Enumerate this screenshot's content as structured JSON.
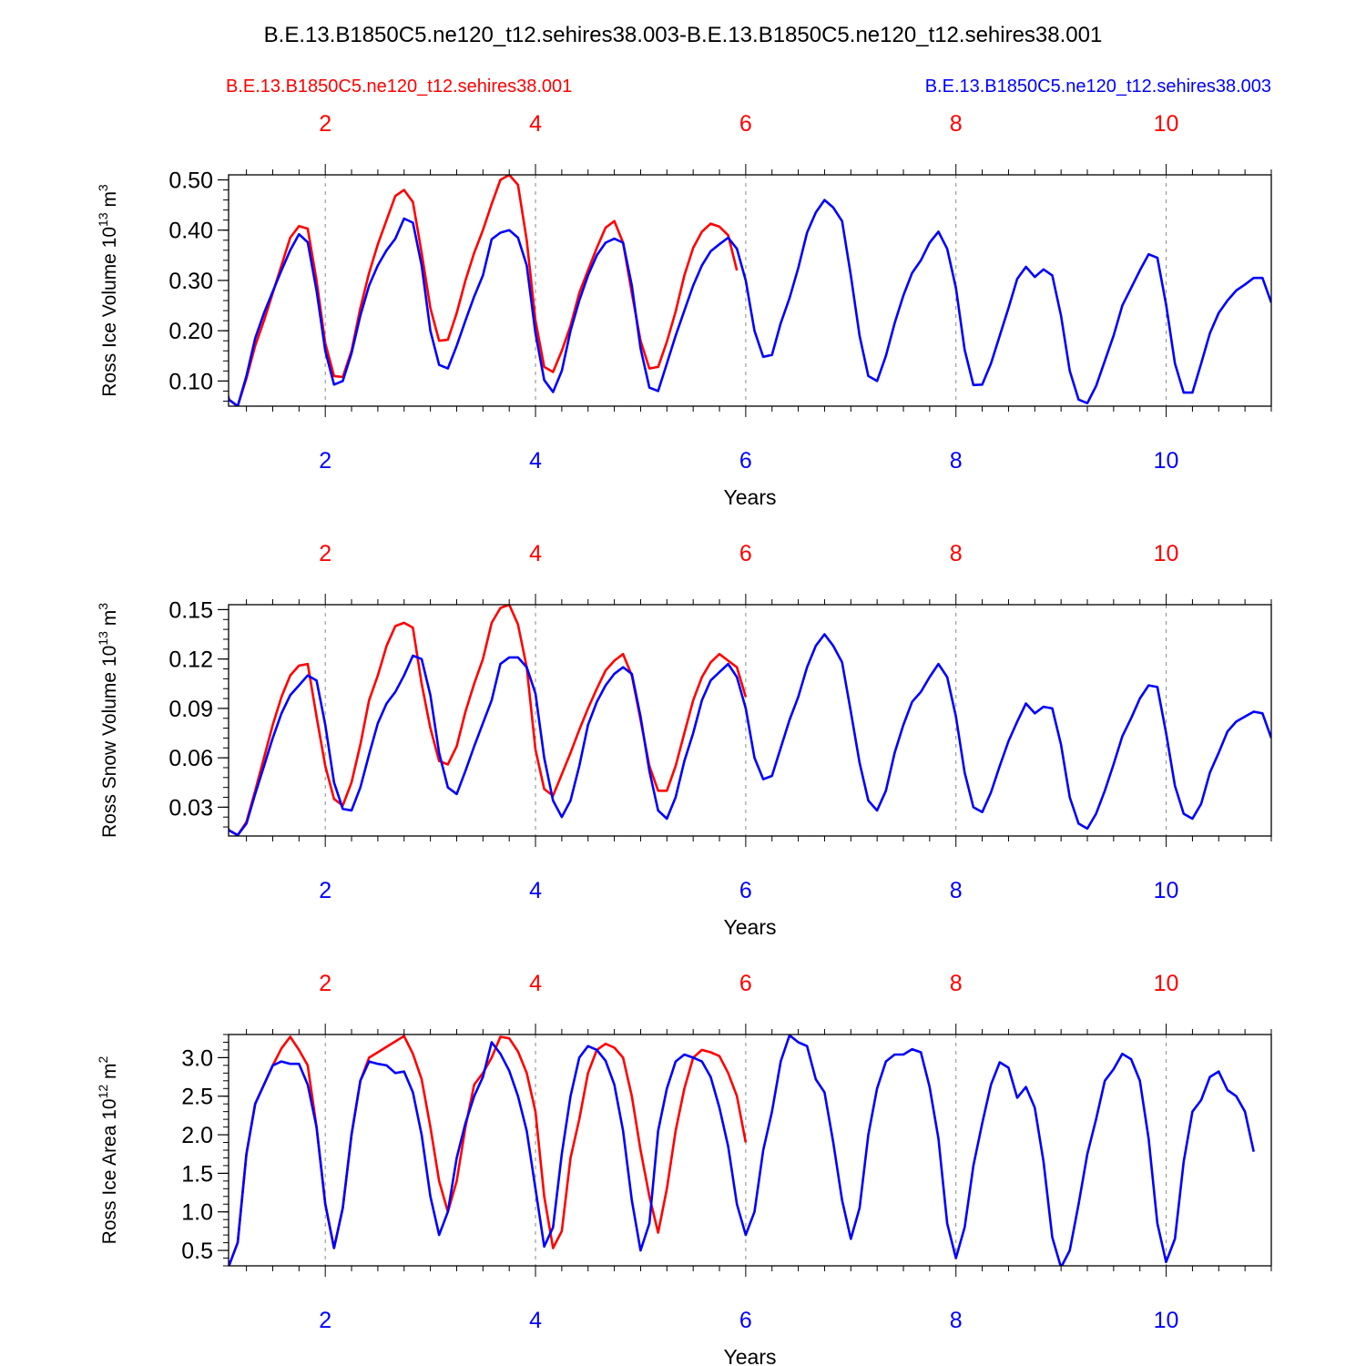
{
  "figure": {
    "title": "B.E.13.B1850C5.ne120_t12.sehires38.003-B.E.13.B1850C5.ne120_t12.sehires38.001",
    "run_labels": {
      "left": "B.E.13.B1850C5.ne120_t12.sehires38.001",
      "right": "B.E.13.B1850C5.ne120_t12.sehires38.003"
    }
  },
  "colors": {
    "run_001": "#ff0000",
    "run_003": "#0000ff",
    "axis": "#000000",
    "grid": "#888888"
  },
  "chart_data": [
    {
      "type": "line",
      "ylabel": "Ross Ice Volume 10",
      "ylabel_exp": "13",
      "ylabel_unit": " m",
      "ylabel_unit_exp": "3",
      "xlabel": "Years",
      "xlim": [
        1.08,
        11.0
      ],
      "ylim": [
        0.05,
        0.51
      ],
      "yticks": [
        0.1,
        0.2,
        0.3,
        0.4,
        0.5
      ],
      "ytick_labels": [
        "0.10",
        "0.20",
        "0.30",
        "0.40",
        "0.50"
      ],
      "xticks": [
        2,
        4,
        6,
        8,
        10
      ],
      "xtick_labels": [
        "2",
        "4",
        "6",
        "8",
        "10"
      ],
      "top_xtick_labels": [
        "2",
        "4",
        "6",
        "8",
        "10"
      ],
      "vlines": [
        2,
        4,
        6,
        8,
        10
      ],
      "series": [
        {
          "name": "B.E.13.B1850C5.ne120_t12.sehires38.001",
          "color_key": "run_001",
          "x_start": 1.0,
          "x_step": 0.08333,
          "values": [
            0.135,
            0.063,
            0.05,
            0.105,
            0.17,
            0.22,
            0.275,
            0.33,
            0.385,
            0.408,
            0.403,
            0.3,
            0.175,
            0.11,
            0.108,
            0.16,
            0.245,
            0.315,
            0.372,
            0.42,
            0.468,
            0.48,
            0.456,
            0.355,
            0.245,
            0.18,
            0.182,
            0.235,
            0.3,
            0.355,
            0.4,
            0.452,
            0.5,
            0.51,
            0.49,
            0.38,
            0.22,
            0.128,
            0.118,
            0.16,
            0.21,
            0.275,
            0.32,
            0.365,
            0.405,
            0.418,
            0.375,
            0.275,
            0.18,
            0.125,
            0.128,
            0.178,
            0.238,
            0.31,
            0.365,
            0.397,
            0.413,
            0.407,
            0.39,
            0.32
          ]
        },
        {
          "name": "B.E.13.B1850C5.ne120_t12.sehires38.003",
          "color_key": "run_003",
          "x_start": 1.0,
          "x_step": 0.08333,
          "values": [
            0.135,
            0.063,
            0.05,
            0.11,
            0.185,
            0.235,
            0.278,
            0.32,
            0.36,
            0.392,
            0.376,
            0.28,
            0.16,
            0.093,
            0.1,
            0.155,
            0.23,
            0.29,
            0.33,
            0.36,
            0.383,
            0.423,
            0.415,
            0.33,
            0.2,
            0.132,
            0.125,
            0.17,
            0.22,
            0.268,
            0.31,
            0.382,
            0.395,
            0.4,
            0.385,
            0.33,
            0.195,
            0.102,
            0.078,
            0.12,
            0.2,
            0.26,
            0.31,
            0.35,
            0.375,
            0.383,
            0.375,
            0.29,
            0.165,
            0.087,
            0.08,
            0.135,
            0.19,
            0.24,
            0.29,
            0.33,
            0.358,
            0.372,
            0.385,
            0.363,
            0.3,
            0.2,
            0.148,
            0.152,
            0.215,
            0.265,
            0.325,
            0.395,
            0.435,
            0.46,
            0.445,
            0.418,
            0.31,
            0.19,
            0.11,
            0.1,
            0.15,
            0.215,
            0.27,
            0.315,
            0.34,
            0.375,
            0.397,
            0.363,
            0.285,
            0.162,
            0.092,
            0.093,
            0.135,
            0.19,
            0.245,
            0.303,
            0.327,
            0.307,
            0.322,
            0.31,
            0.23,
            0.12,
            0.063,
            0.056,
            0.09,
            0.14,
            0.19,
            0.25,
            0.285,
            0.32,
            0.352,
            0.345,
            0.252,
            0.135,
            0.077,
            0.077,
            0.135,
            0.195,
            0.235,
            0.26,
            0.28,
            0.292,
            0.305,
            0.305,
            0.256
          ]
        }
      ]
    },
    {
      "type": "line",
      "ylabel": "Ross Snow Volume 10",
      "ylabel_exp": "13",
      "ylabel_unit": " m",
      "ylabel_unit_exp": "3",
      "xlabel": "Years",
      "xlim": [
        1.08,
        11.0
      ],
      "ylim": [
        0.0125,
        0.153
      ],
      "yticks": [
        0.03,
        0.06,
        0.09,
        0.12,
        0.15
      ],
      "ytick_labels": [
        "0.03",
        "0.06",
        "0.09",
        "0.12",
        "0.15"
      ],
      "xticks": [
        2,
        4,
        6,
        8,
        10
      ],
      "xtick_labels": [
        "2",
        "4",
        "6",
        "8",
        "10"
      ],
      "top_xtick_labels": [
        "2",
        "4",
        "6",
        "8",
        "10"
      ],
      "vlines": [
        2,
        4,
        6,
        8,
        10
      ],
      "series": [
        {
          "name": "B.E.13.B1850C5.ne120_t12.sehires38.001",
          "color_key": "run_001",
          "x_start": 1.0,
          "x_step": 0.08333,
          "values": [
            0.027,
            0.016,
            0.013,
            0.021,
            0.04,
            0.06,
            0.08,
            0.097,
            0.11,
            0.116,
            0.117,
            0.085,
            0.055,
            0.035,
            0.031,
            0.045,
            0.068,
            0.095,
            0.11,
            0.128,
            0.14,
            0.142,
            0.139,
            0.105,
            0.078,
            0.058,
            0.056,
            0.067,
            0.088,
            0.105,
            0.12,
            0.142,
            0.151,
            0.153,
            0.141,
            0.115,
            0.065,
            0.041,
            0.037,
            0.05,
            0.063,
            0.077,
            0.09,
            0.102,
            0.113,
            0.119,
            0.123,
            0.11,
            0.083,
            0.055,
            0.04,
            0.04,
            0.055,
            0.075,
            0.095,
            0.109,
            0.118,
            0.123,
            0.119,
            0.115,
            0.097
          ]
        },
        {
          "name": "B.E.13.B1850C5.ne120_t12.sehires38.003",
          "color_key": "run_003",
          "x_start": 1.0,
          "x_step": 0.08333,
          "values": [
            0.027,
            0.016,
            0.013,
            0.02,
            0.038,
            0.055,
            0.072,
            0.087,
            0.098,
            0.104,
            0.11,
            0.107,
            0.08,
            0.045,
            0.029,
            0.028,
            0.042,
            0.062,
            0.081,
            0.093,
            0.1,
            0.11,
            0.122,
            0.12,
            0.098,
            0.063,
            0.042,
            0.038,
            0.052,
            0.067,
            0.081,
            0.095,
            0.117,
            0.121,
            0.121,
            0.115,
            0.099,
            0.06,
            0.034,
            0.024,
            0.034,
            0.055,
            0.08,
            0.094,
            0.104,
            0.111,
            0.115,
            0.111,
            0.085,
            0.052,
            0.028,
            0.023,
            0.036,
            0.058,
            0.075,
            0.095,
            0.107,
            0.112,
            0.117,
            0.109,
            0.09,
            0.06,
            0.047,
            0.049,
            0.066,
            0.083,
            0.097,
            0.115,
            0.128,
            0.135,
            0.128,
            0.118,
            0.088,
            0.057,
            0.034,
            0.028,
            0.04,
            0.063,
            0.08,
            0.094,
            0.1,
            0.109,
            0.117,
            0.109,
            0.085,
            0.051,
            0.03,
            0.027,
            0.039,
            0.055,
            0.07,
            0.082,
            0.093,
            0.087,
            0.091,
            0.09,
            0.068,
            0.036,
            0.02,
            0.017,
            0.026,
            0.04,
            0.056,
            0.073,
            0.084,
            0.096,
            0.104,
            0.103,
            0.075,
            0.043,
            0.026,
            0.023,
            0.032,
            0.051,
            0.063,
            0.076,
            0.082,
            0.085,
            0.088,
            0.087,
            0.072
          ]
        }
      ]
    },
    {
      "type": "line",
      "ylabel": "Ross Ice Area 10",
      "ylabel_exp": "12",
      "ylabel_unit": " m",
      "ylabel_unit_exp": "2",
      "xlabel": "Years",
      "xlim": [
        1.08,
        11.0
      ],
      "ylim": [
        0.3,
        3.3
      ],
      "yticks": [
        0.5,
        1.0,
        1.5,
        2.0,
        2.5,
        3.0
      ],
      "ytick_labels": [
        "0.5",
        "1.0",
        "1.5",
        "2.0",
        "2.5",
        "3.0"
      ],
      "xticks": [
        2,
        4,
        6,
        8,
        10
      ],
      "xtick_labels": [
        "2",
        "4",
        "6",
        "8",
        "10"
      ],
      "top_xtick_labels": [
        "2",
        "4",
        "6",
        "8",
        "10"
      ],
      "vlines": [
        2,
        4,
        6,
        8,
        10
      ],
      "series": [
        {
          "name": "B.E.13.B1850C5.ne120_t12.sehires38.001",
          "color_key": "run_001",
          "x_start": 1.0,
          "x_step": 0.08333,
          "values": [
            0.85,
            0.3,
            0.6,
            1.75,
            2.4,
            2.65,
            2.9,
            3.12,
            3.27,
            3.1,
            2.9,
            2.1,
            1.1,
            0.53,
            1.05,
            2.0,
            2.7,
            3.0,
            3.07,
            3.14,
            3.21,
            3.28,
            3.05,
            2.72,
            2.1,
            1.4,
            1.0,
            1.4,
            2.1,
            2.65,
            2.8,
            3.0,
            3.27,
            3.25,
            3.08,
            2.8,
            2.3,
            1.2,
            0.53,
            0.75,
            1.7,
            2.2,
            2.8,
            3.1,
            3.18,
            3.13,
            3.0,
            2.5,
            1.8,
            1.2,
            0.73,
            1.3,
            2.05,
            2.6,
            3.0,
            3.1,
            3.07,
            3.02,
            2.8,
            2.5,
            1.9
          ]
        },
        {
          "name": "B.E.13.B1850C5.ne120_t12.sehires38.003",
          "color_key": "run_003",
          "x_start": 1.0,
          "x_step": 0.08333,
          "values": [
            0.85,
            0.3,
            0.6,
            1.75,
            2.4,
            2.65,
            2.9,
            2.95,
            2.92,
            2.92,
            2.65,
            2.1,
            1.1,
            0.53,
            1.05,
            2.0,
            2.7,
            2.95,
            2.92,
            2.9,
            2.8,
            2.82,
            2.55,
            2.0,
            1.2,
            0.7,
            1.0,
            1.7,
            2.15,
            2.5,
            2.75,
            3.2,
            3.05,
            2.83,
            2.5,
            2.05,
            1.3,
            0.55,
            0.8,
            1.75,
            2.5,
            3.0,
            3.15,
            3.1,
            2.96,
            2.65,
            2.05,
            1.15,
            0.5,
            0.85,
            2.05,
            2.6,
            2.95,
            3.04,
            3.0,
            2.95,
            2.75,
            2.35,
            1.85,
            1.1,
            0.7,
            1.0,
            1.8,
            2.3,
            2.95,
            3.29,
            3.2,
            3.15,
            2.72,
            2.55,
            1.9,
            1.15,
            0.65,
            1.05,
            2.0,
            2.6,
            2.95,
            3.04,
            3.04,
            3.11,
            3.07,
            2.62,
            1.95,
            0.85,
            0.4,
            0.8,
            1.6,
            2.15,
            2.65,
            2.94,
            2.87,
            2.48,
            2.62,
            2.35,
            1.65,
            0.67,
            0.28,
            0.5,
            1.1,
            1.75,
            2.2,
            2.7,
            2.85,
            3.05,
            2.98,
            2.7,
            1.95,
            0.85,
            0.35,
            0.65,
            1.65,
            2.3,
            2.45,
            2.75,
            2.82,
            2.58,
            2.5,
            2.3,
            1.78
          ]
        }
      ]
    }
  ]
}
